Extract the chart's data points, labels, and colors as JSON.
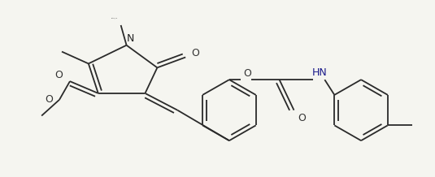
{
  "line_color": "#2a2a2a",
  "bg_color": "#f5f5f0",
  "line_width": 1.3,
  "dbo": 0.013,
  "figsize": [
    5.35,
    2.18
  ],
  "dpi": 100,
  "labels": {
    "N": "N",
    "O_ketone": "O",
    "O_ester_co": "O",
    "O_ester_single": "O",
    "O_ether": "O",
    "HN": "HN",
    "O_amide": "O"
  }
}
